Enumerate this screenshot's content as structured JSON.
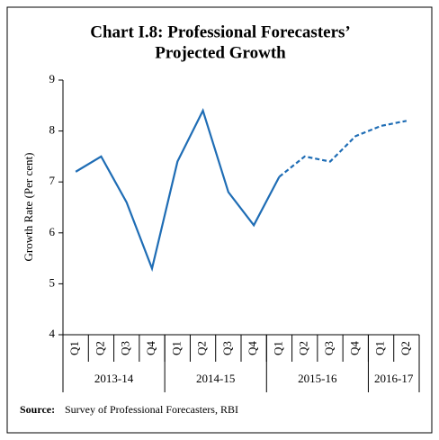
{
  "chart_data": {
    "type": "line",
    "title": "Chart I.8: Professional Forecasters’",
    "subtitle": "Projected Growth",
    "ylabel": "Growth Rate (Per cent)",
    "categories": [
      "Q1",
      "Q2",
      "Q3",
      "Q4",
      "Q1",
      "Q2",
      "Q3",
      "Q4",
      "Q1",
      "Q2",
      "Q3",
      "Q4",
      "Q1",
      "Q2"
    ],
    "groups": [
      {
        "label": "2013-14",
        "size": 4
      },
      {
        "label": "2014-15",
        "size": 4
      },
      {
        "label": "2015-16",
        "size": 4
      },
      {
        "label": "2016-17",
        "size": 2
      }
    ],
    "series": [
      {
        "color": "#1f6db5",
        "dashed": false,
        "values": [
          7.2,
          7.5,
          6.6,
          5.3,
          7.4,
          8.4,
          6.8,
          6.15,
          7.1,
          null,
          null,
          null,
          null,
          null
        ]
      },
      {
        "color": "#1f6db5",
        "dashed": true,
        "values": [
          null,
          null,
          null,
          null,
          null,
          null,
          null,
          null,
          7.1,
          7.5,
          7.4,
          7.9,
          8.1,
          8.2
        ]
      }
    ],
    "ylim": [
      4,
      9
    ],
    "yticks": [
      4,
      5,
      6,
      7,
      8,
      9
    ],
    "grid": false,
    "source_label": "Source:",
    "source": "Survey of Professional Forecasters, RBI"
  }
}
